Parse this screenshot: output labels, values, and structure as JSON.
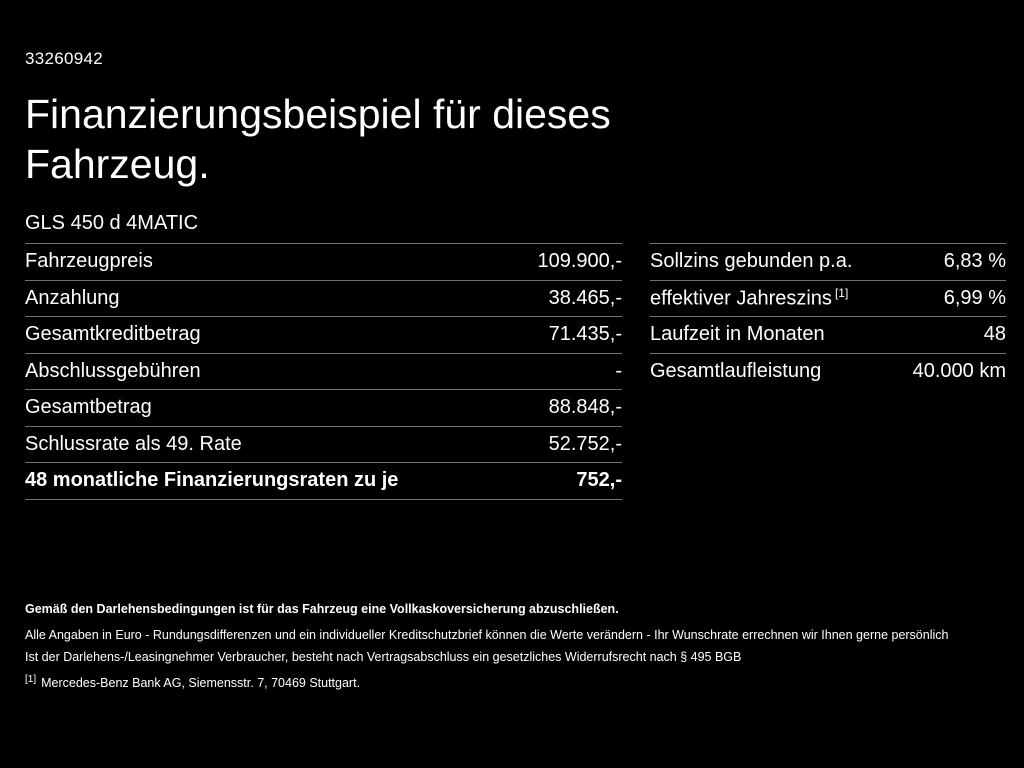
{
  "header": {
    "vehicle_id": "33260942",
    "title_line1": "Finanzierungsbeispiel für dieses",
    "title_line2": "Fahrzeug.",
    "vehicle_name": "GLS 450 d 4MATIC"
  },
  "finance_table": {
    "rows": [
      {
        "label": "Fahrzeugpreis",
        "value": "109.900,-"
      },
      {
        "label": "Anzahlung",
        "value": "38.465,-"
      },
      {
        "label": "Gesamtkreditbetrag",
        "value": "71.435,-"
      },
      {
        "label": "Abschlussgebühren",
        "value": "-"
      },
      {
        "label": "Gesamtbetrag",
        "value": "88.848,-"
      },
      {
        "label": "Schlussrate als 49. Rate",
        "value": "52.752,-"
      },
      {
        "label": "48 monatliche Finanzierungsraten zu je",
        "value": "752,-"
      }
    ]
  },
  "conditions_table": {
    "rows": [
      {
        "label": "Sollzins gebunden p.a.",
        "value": "6,83 %"
      },
      {
        "label": "effektiver Jahreszins",
        "sup": "[1]",
        "value": "6,99 %"
      },
      {
        "label": "Laufzeit in Monaten",
        "value": "48"
      },
      {
        "label": "Gesamtlaufleistung",
        "value": "40.000 km"
      }
    ]
  },
  "footer": {
    "insurance_note": "Gemäß den Darlehensbedingungen ist für das Fahrzeug eine Vollkaskoversicherung abzuschließen.",
    "disclaimer_1": "Alle Angaben in Euro - Rundungsdifferenzen und ein individueller Kreditschutzbrief können die Werte verändern - Ihr Wunschrate errechnen wir Ihnen gerne persönlich",
    "disclaimer_2": "Ist der Darlehens-/Leasingnehmer Verbraucher, besteht nach Vertragsabschluss ein gesetzliches Widerrufsrecht nach § 495 BGB",
    "footnote_marker": "[1]",
    "footnote_text": "Mercedes-Benz Bank AG, Siemensstr. 7, 70469 Stuttgart."
  },
  "colors": {
    "background": "#000000",
    "text": "#ffffff",
    "divider": "#707070"
  }
}
